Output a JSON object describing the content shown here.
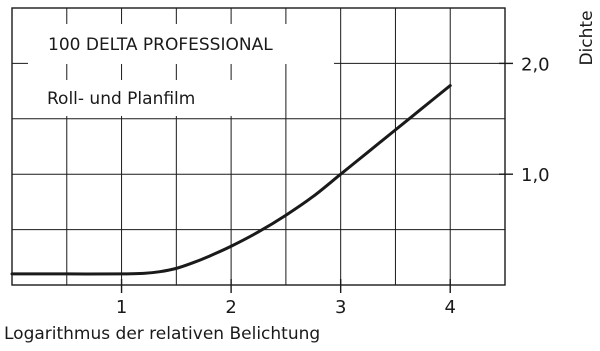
{
  "chart_data": {
    "type": "line",
    "title": "",
    "annotations": [
      "100 DELTA PROFESSIONAL",
      "Roll- und Planfilm"
    ],
    "xlabel": "Logarithmus der relativen Belichtung",
    "ylabel": "Dichte",
    "xlim": [
      0,
      4.5
    ],
    "ylim": [
      0,
      2.5
    ],
    "x_ticks": [
      1,
      2,
      3,
      4
    ],
    "x_tick_labels": [
      "1",
      "2",
      "3",
      "4"
    ],
    "y_ticks": [
      1.0,
      2.0
    ],
    "y_tick_labels": [
      "1,0",
      "2,0"
    ],
    "grid": true,
    "grid_step_x": 0.5,
    "grid_step_y": 0.5,
    "series": [
      {
        "x": [
          0,
          0.5,
          1.0,
          1.2,
          1.35,
          1.5,
          1.65,
          1.8,
          2.0,
          2.25,
          2.5,
          2.75,
          3.0,
          3.25,
          3.5,
          3.75,
          4.0
        ],
        "y": [
          0.1,
          0.1,
          0.1,
          0.105,
          0.12,
          0.15,
          0.2,
          0.26,
          0.35,
          0.48,
          0.63,
          0.8,
          1.0,
          1.2,
          1.4,
          1.6,
          1.8
        ]
      }
    ],
    "colors": {
      "line": "#1a1a1a",
      "grid": "#1a1a1a",
      "box_fill": "#ffffff"
    }
  }
}
